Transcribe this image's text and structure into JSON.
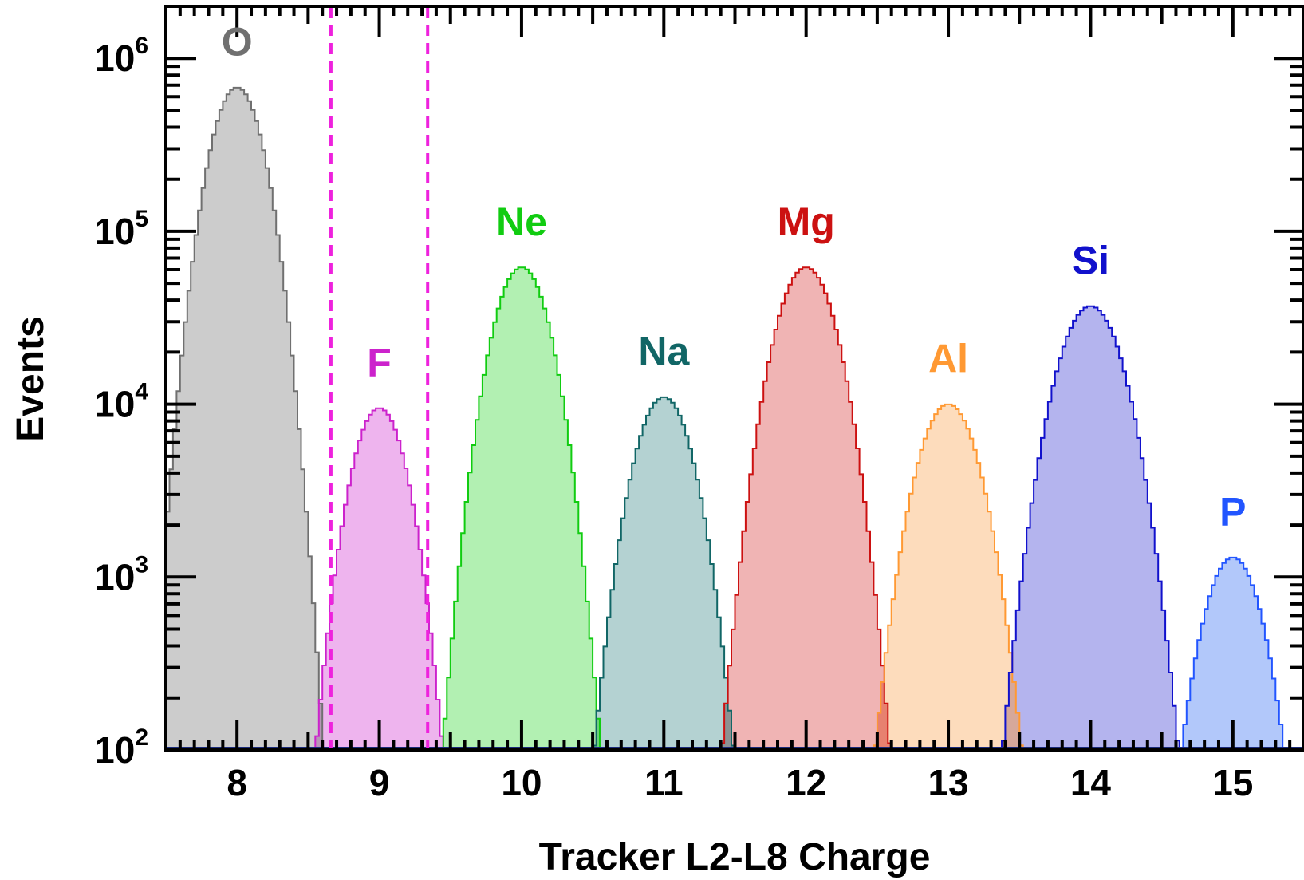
{
  "chart_data": {
    "type": "area",
    "xlabel": "Tracker L2-L8 Charge",
    "ylabel": "Events",
    "xlim": [
      7.5,
      15.5
    ],
    "ylim": [
      100,
      2000000
    ],
    "y_scale": "log",
    "x_ticks": [
      "8",
      "9",
      "10",
      "11",
      "12",
      "13",
      "14",
      "15"
    ],
    "y_ticks": [
      {
        "base": "10",
        "exp": "2",
        "value": 100
      },
      {
        "base": "10",
        "exp": "3",
        "value": 1000
      },
      {
        "base": "10",
        "exp": "4",
        "value": 10000
      },
      {
        "base": "10",
        "exp": "5",
        "value": 100000
      },
      {
        "base": "10",
        "exp": "6",
        "value": 1000000
      }
    ],
    "grid": false,
    "selection_cuts": {
      "values": [
        8.66,
        9.34
      ],
      "color": "#ee22dd",
      "style": "dashed"
    },
    "series": [
      {
        "name": "O",
        "center": 8,
        "peak": 680000,
        "sigma": 0.145,
        "color": "#707070",
        "fill": "#cccccc"
      },
      {
        "name": "F",
        "center": 9,
        "peak": 9500,
        "sigma": 0.148,
        "color": "#cc22cc",
        "fill": "#eeb4ee"
      },
      {
        "name": "Ne",
        "center": 10,
        "peak": 62000,
        "sigma": 0.155,
        "color": "#11cc11",
        "fill": "#b2f0b2"
      },
      {
        "name": "Na",
        "center": 11,
        "peak": 11000,
        "sigma": 0.16,
        "color": "#116666",
        "fill": "#b4d2d2"
      },
      {
        "name": "Mg",
        "center": 12,
        "peak": 62000,
        "sigma": 0.165,
        "color": "#cc1111",
        "fill": "#f0b4b4"
      },
      {
        "name": "Al",
        "center": 13,
        "peak": 10000,
        "sigma": 0.17,
        "color": "#ff9933",
        "fill": "#fddcbc"
      },
      {
        "name": "Si",
        "center": 14,
        "peak": 37000,
        "sigma": 0.18,
        "color": "#1111cc",
        "fill": "#b4b4ee"
      },
      {
        "name": "P",
        "center": 15,
        "peak": 1300,
        "sigma": 0.16,
        "color": "#2255ff",
        "fill": "#b2c8fa"
      }
    ]
  }
}
